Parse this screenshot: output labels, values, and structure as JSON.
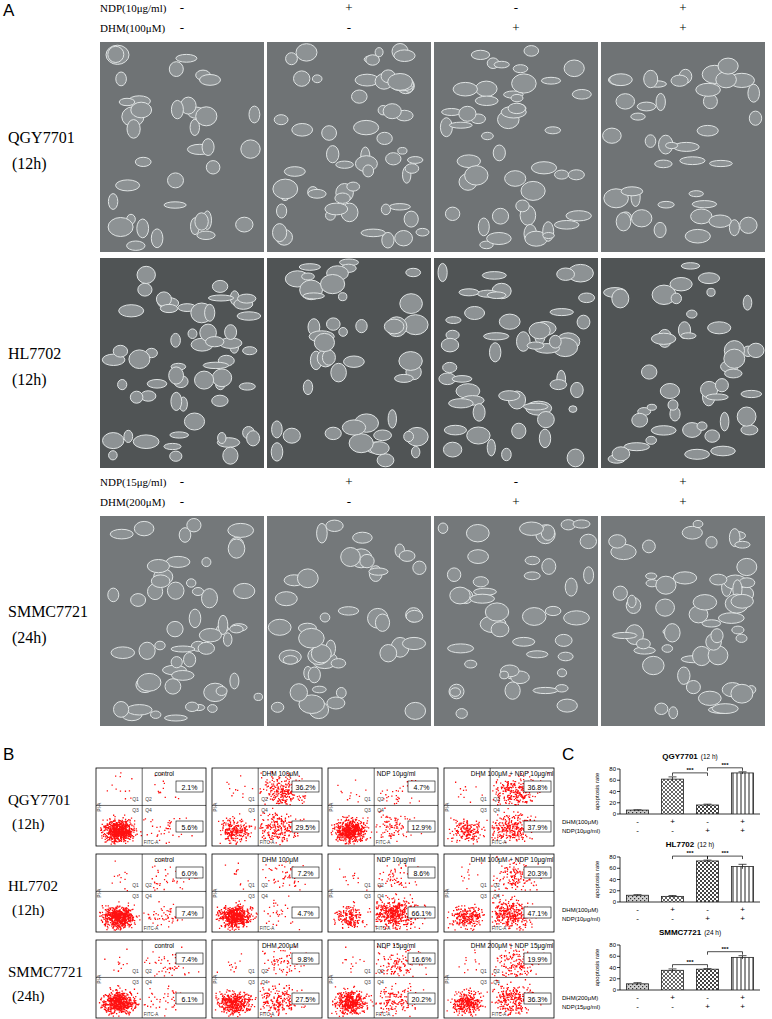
{
  "panel_labels": [
    "A",
    "B",
    "C"
  ],
  "panel_a": {
    "groups": [
      {
        "headers": [
          {
            "label": "NDP(10μg/ml)",
            "signs": [
              "-",
              "+",
              "-",
              "+"
            ]
          },
          {
            "label": "DHM(100μM)",
            "signs": [
              "-",
              "-",
              "+",
              "+"
            ]
          }
        ],
        "rows": [
          {
            "cell_line": "QGY7701",
            "time": "(12h)"
          },
          {
            "cell_line": "HL7702",
            "time": "(12h)"
          }
        ]
      },
      {
        "headers": [
          {
            "label": "NDP(15μg/ml)",
            "signs": [
              "-",
              "+",
              "-",
              "+"
            ]
          },
          {
            "label": "DHM(200μM)",
            "signs": [
              "-",
              "-",
              "+",
              "+"
            ]
          }
        ],
        "rows": [
          {
            "cell_line": "SMMC7721",
            "time": "(24h)"
          }
        ]
      }
    ]
  },
  "panel_b": {
    "x_label": "FITC-A",
    "y_label": "PI-A",
    "quadrants": [
      "Q1",
      "Q2",
      "Q3",
      "Q4"
    ],
    "rows": [
      {
        "cell_line": "QGY7701",
        "time": "(12h)",
        "plots": [
          {
            "title": "control",
            "q2": "2.1%",
            "q4": "5.6%"
          },
          {
            "title": "DHM 100μM",
            "q2": "36.2%",
            "q4": "29.5%"
          },
          {
            "title": "NDP 10μg/ml",
            "q2": "4.7%",
            "q4": "12.9%"
          },
          {
            "title": "DHM 100μM + NDP 10μg/ml",
            "q2": "36.8%",
            "q4": "37.9%"
          }
        ]
      },
      {
        "cell_line": "HL7702",
        "time": "(12h)",
        "plots": [
          {
            "title": "control",
            "q2": "6.0%",
            "q4": "7.4%"
          },
          {
            "title": "DHM 100μM",
            "q2": "7.2%",
            "q4": "4.7%"
          },
          {
            "title": "NDP 10μg/ml",
            "q2": "8.6%",
            "q4": "66.1%"
          },
          {
            "title": "DHM 100μM + NDP 10μg/ml",
            "q2": "20.3%",
            "q4": "47.1%"
          }
        ]
      },
      {
        "cell_line": "SMMC7721",
        "time": "(24h)",
        "plots": [
          {
            "title": "control",
            "q2": "7.4%",
            "q4": "6.1%"
          },
          {
            "title": "DHM 200μM",
            "q2": "9.8%",
            "q4": "27.5%"
          },
          {
            "title": "NDP 15μg/ml",
            "q2": "16.6%",
            "q4": "20.2%"
          },
          {
            "title": "DHM 200μM + NDP 15μg/ml",
            "q2": "19.9%",
            "q4": "36.3%"
          }
        ]
      }
    ]
  },
  "chart_data": [
    {
      "type": "bar",
      "title": "QGY7701",
      "subtitle": "(12 h)",
      "y_label": "apoptosis rate",
      "categories": [
        null,
        null,
        null,
        null
      ],
      "values": [
        7,
        62,
        16,
        73
      ],
      "errors": [
        0.5,
        4,
        1.5,
        2
      ],
      "color": "#222222",
      "ylim": [
        0,
        80
      ],
      "yticks": [
        0,
        20,
        40,
        60,
        80
      ],
      "treatment_rows": [
        {
          "label": "DHM(100μM)",
          "signs": [
            "-",
            "+",
            "-",
            "+"
          ]
        },
        {
          "label": "NDP(10μg/ml)",
          "signs": [
            "-",
            "-",
            "+",
            "+"
          ]
        }
      ],
      "significance": {
        "label": "***",
        "pairs": [
          [
            1,
            2
          ],
          [
            2,
            3
          ]
        ]
      }
    },
    {
      "type": "bar",
      "title": "HL7702",
      "subtitle": "(12 h)",
      "y_label": "apoptosis rate",
      "categories": [
        null,
        null,
        null,
        null
      ],
      "values": [
        12,
        10,
        73,
        63
      ],
      "errors": [
        1,
        1.5,
        1.5,
        4
      ],
      "color": "#222222",
      "ylim": [
        0,
        80
      ],
      "yticks": [
        0,
        20,
        40,
        60,
        80
      ],
      "treatment_rows": [
        {
          "label": "DHM(100μM)",
          "signs": [
            "-",
            "+",
            "-",
            "+"
          ]
        },
        {
          "label": "NDP(10μg/ml)",
          "signs": [
            "-",
            "-",
            "+",
            "+"
          ]
        }
      ],
      "significance": {
        "label": "***",
        "pairs": [
          [
            1,
            2
          ],
          [
            2,
            3
          ]
        ]
      }
    },
    {
      "type": "bar",
      "title": "SMMC7721",
      "subtitle": "(24 h)",
      "y_label": "apoptosis rate",
      "categories": [
        null,
        null,
        null,
        null
      ],
      "values": [
        11,
        35,
        37,
        58
      ],
      "errors": [
        2,
        2.5,
        1,
        3
      ],
      "color": "#222222",
      "ylim": [
        0,
        80
      ],
      "yticks": [
        0,
        20,
        40,
        60,
        80
      ],
      "treatment_rows": [
        {
          "label": "DHM(200μM)",
          "signs": [
            "-",
            "+",
            "-",
            "+"
          ]
        },
        {
          "label": "NDP(15μg/ml)",
          "signs": [
            "-",
            "-",
            "+",
            "+"
          ]
        }
      ],
      "significance": {
        "label": "***",
        "pairs": [
          [
            1,
            2
          ],
          [
            2,
            3
          ]
        ]
      }
    }
  ]
}
